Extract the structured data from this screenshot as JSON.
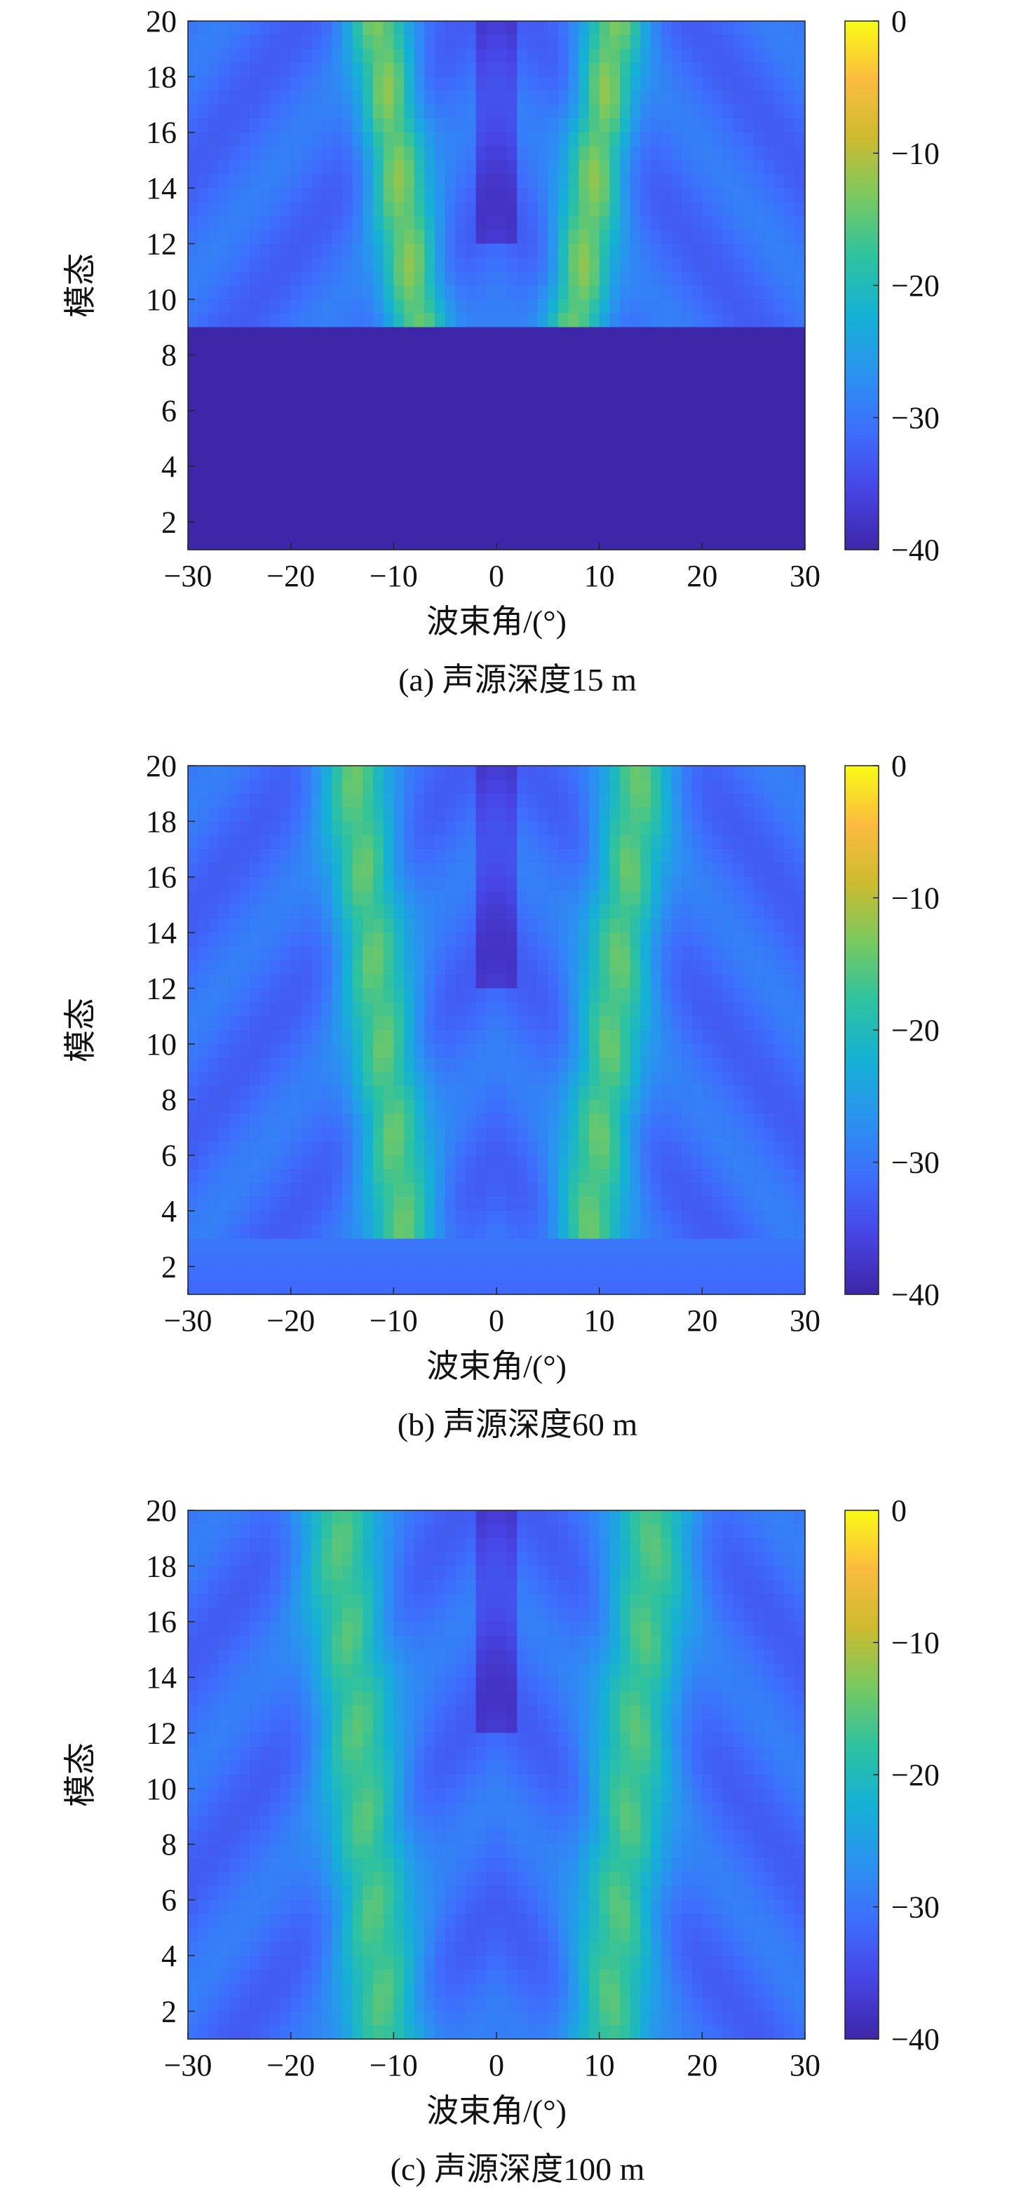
{
  "colors": {
    "colormap": [
      "#3e26a8",
      "#4744e4",
      "#3e6dfd",
      "#2a93f0",
      "#15b1d4",
      "#2ec29f",
      "#78c95f",
      "#cdbb2f",
      "#fbbb3f",
      "#f9fb15"
    ],
    "axis": "#222222"
  },
  "chart_data": [
    {
      "type": "heatmap",
      "caption": "(a) 声源深度15 m",
      "xlabel": "波束角/(°)",
      "ylabel": "模态",
      "xlim": [
        -30,
        30
      ],
      "ylim": [
        1,
        20
      ],
      "clim": [
        -40,
        0
      ],
      "x_ticks": [
        -30,
        -20,
        -10,
        0,
        10,
        20,
        30
      ],
      "x_tick_labels": [
        "−30",
        "−20",
        "−10",
        "0",
        "10",
        "20",
        "30"
      ],
      "y_ticks": [
        2,
        4,
        6,
        8,
        10,
        12,
        14,
        16,
        18,
        20
      ],
      "y_tick_labels": [
        "2",
        "4",
        "6",
        "8",
        "10",
        "12",
        "14",
        "16",
        "18",
        "20"
      ],
      "colorbar_ticks": [
        0,
        -10,
        -20,
        -30,
        -40
      ],
      "colorbar_tick_labels": [
        "0",
        "−10",
        "−20",
        "−30",
        "−40"
      ],
      "model": {
        "mode_cutoff": 9,
        "background": -40,
        "lobe_center": 8,
        "lobe_width": 3,
        "lobe_spread": 0.35,
        "lobe_peak": -12
      }
    },
    {
      "type": "heatmap",
      "caption": "(b) 声源深度60 m",
      "xlabel": "波束角/(°)",
      "ylabel": "模态",
      "xlim": [
        -30,
        30
      ],
      "ylim": [
        1,
        20
      ],
      "clim": [
        -40,
        0
      ],
      "x_ticks": [
        -30,
        -20,
        -10,
        0,
        10,
        20,
        30
      ],
      "x_tick_labels": [
        "−30",
        "−20",
        "−10",
        "0",
        "10",
        "20",
        "30"
      ],
      "y_ticks": [
        2,
        4,
        6,
        8,
        10,
        12,
        14,
        16,
        18,
        20
      ],
      "y_tick_labels": [
        "2",
        "4",
        "6",
        "8",
        "10",
        "12",
        "14",
        "16",
        "18",
        "20"
      ],
      "colorbar_ticks": [
        0,
        -10,
        -20,
        -30,
        -40
      ],
      "colorbar_tick_labels": [
        "0",
        "−10",
        "−20",
        "−30",
        "−40"
      ],
      "model": {
        "mode_cutoff": 3,
        "background": -30,
        "lobe_center": 11,
        "lobe_width": 3.5,
        "lobe_spread": 0.3,
        "lobe_peak": -14
      }
    },
    {
      "type": "heatmap",
      "caption": "(c) 声源深度100 m",
      "xlabel": "波束角/(°)",
      "ylabel": "模态",
      "xlim": [
        -30,
        30
      ],
      "ylim": [
        1,
        20
      ],
      "clim": [
        -40,
        0
      ],
      "x_ticks": [
        -30,
        -20,
        -10,
        0,
        10,
        20,
        30
      ],
      "x_tick_labels": [
        "−30",
        "−20",
        "−10",
        "0",
        "10",
        "20",
        "30"
      ],
      "y_ticks": [
        2,
        4,
        6,
        8,
        10,
        12,
        14,
        16,
        18,
        20
      ],
      "y_tick_labels": [
        "2",
        "4",
        "6",
        "8",
        "10",
        "12",
        "14",
        "16",
        "18",
        "20"
      ],
      "colorbar_ticks": [
        0,
        -10,
        -20,
        -30,
        -40
      ],
      "colorbar_tick_labels": [
        "0",
        "−10",
        "−20",
        "−30",
        "−40"
      ],
      "model": {
        "mode_cutoff": 0,
        "background": -28,
        "lobe_center": 13,
        "lobe_width": 4,
        "lobe_spread": 0.25,
        "lobe_peak": -15
      }
    }
  ]
}
